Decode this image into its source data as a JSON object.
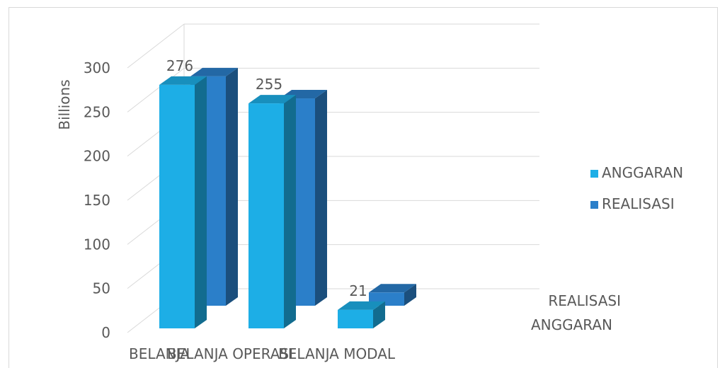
{
  "chart_data": {
    "type": "bar",
    "subtype": "3d-clustered-column",
    "ylabel": "Billions",
    "ylim": [
      0,
      300
    ],
    "ytick_step": 50,
    "yticks": [
      "0",
      "50",
      "100",
      "150",
      "200",
      "250",
      "300"
    ],
    "categories": [
      "BELANJA",
      "BELANJA OPERASI",
      "BELANJA MODAL"
    ],
    "series": [
      {
        "name": "ANGGARAN",
        "color": "#1daee6",
        "values": [
          276,
          255,
          21
        ],
        "labels": [
          "276",
          "255",
          "21"
        ]
      },
      {
        "name": "REALISASI",
        "color": "#2b7fc9",
        "values": [
          260,
          235,
          15
        ],
        "labels": [
          "",
          "",
          ""
        ]
      }
    ],
    "depth_axis_labels": [
      "REALISASI",
      "ANGGARAN"
    ],
    "grid": true,
    "legend": "right"
  }
}
